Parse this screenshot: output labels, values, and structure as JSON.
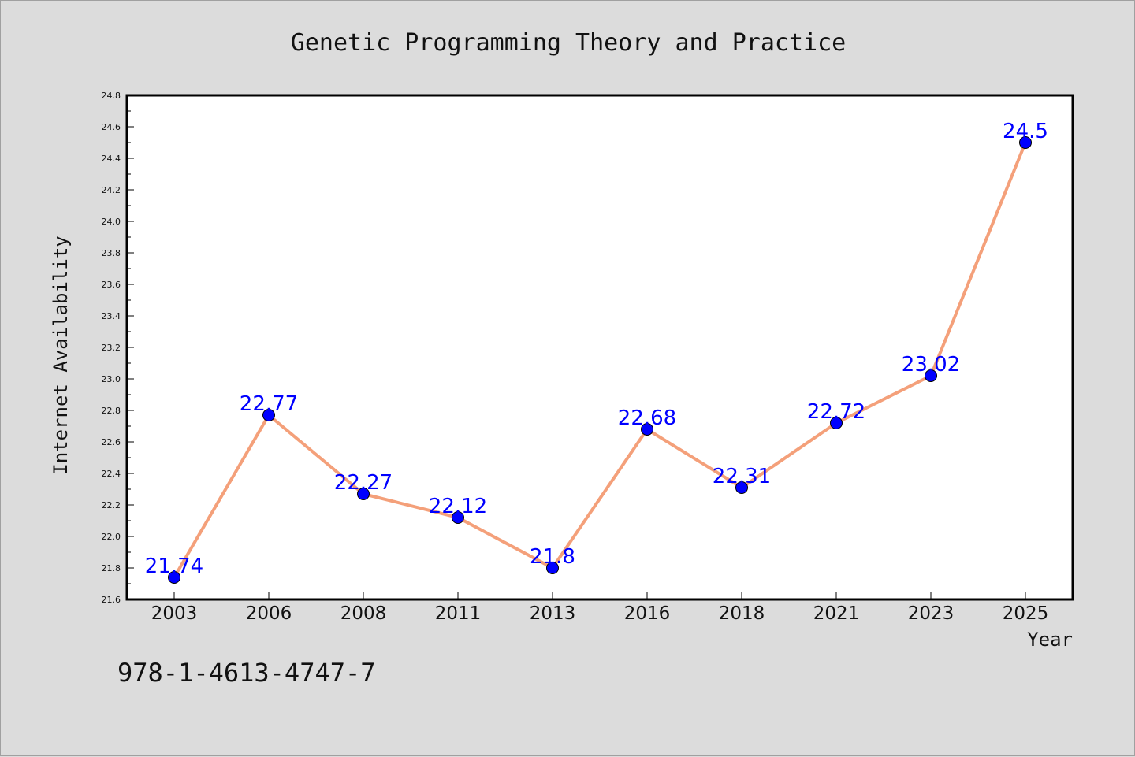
{
  "chart_data": {
    "type": "line",
    "title": "Genetic Programming Theory and Practice",
    "xlabel": "Year",
    "ylabel": "Internet Availability",
    "categories": [
      "2003",
      "2006",
      "2008",
      "2011",
      "2013",
      "2016",
      "2018",
      "2021",
      "2023",
      "2025"
    ],
    "series": [
      {
        "values": [
          21.74,
          22.77,
          22.27,
          22.12,
          21.8,
          22.68,
          22.31,
          22.72,
          23.02,
          24.5
        ],
        "data_labels": [
          "21.74",
          "22.77",
          "22.27",
          "22.12",
          "21.8",
          "22.68",
          "22.31",
          "22.72",
          "23.02",
          "24.5"
        ],
        "line_color": "#f4a07a",
        "marker_color": "#0000ff"
      }
    ],
    "ylim": [
      21.6,
      24.8
    ],
    "yticks": [
      "21.6",
      "21.8",
      "22.0",
      "22.2",
      "22.4",
      "22.6",
      "22.8",
      "23.0",
      "23.2",
      "23.4",
      "23.6",
      "23.8",
      "24.0",
      "24.2",
      "24.4",
      "24.6",
      "24.8"
    ],
    "grid": false,
    "legend": "none"
  },
  "footer": {
    "isbn": "978-1-4613-4747-7"
  },
  "colors": {
    "background": "#dcdcdc",
    "plot_background": "#ffffff",
    "line": "#f4a07a",
    "marker": "#0000ff",
    "data_label": "#0000ff"
  }
}
